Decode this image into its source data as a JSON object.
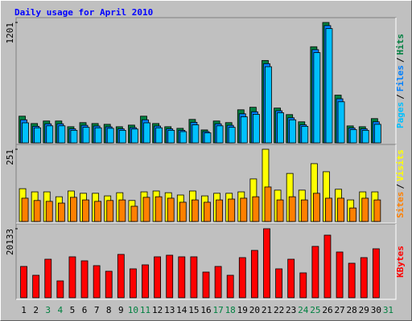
{
  "chart_data": [
    {
      "type": "bar",
      "title": "Daily usage for April 2010",
      "categories": [
        "1",
        "2",
        "3",
        "4",
        "5",
        "6",
        "7",
        "8",
        "9",
        "10",
        "11",
        "12",
        "13",
        "14",
        "15",
        "16",
        "17",
        "18",
        "19",
        "20",
        "21",
        "22",
        "23",
        "24",
        "25",
        "26",
        "27",
        "28",
        "29",
        "30",
        "31"
      ],
      "category_colors": [
        "#000000",
        "#000000",
        "#008040",
        "#008040",
        "#000000",
        "#000000",
        "#000000",
        "#000000",
        "#000000",
        "#008040",
        "#008040",
        "#000000",
        "#000000",
        "#000000",
        "#000000",
        "#000000",
        "#008040",
        "#008040",
        "#000000",
        "#000000",
        "#000000",
        "#000000",
        "#000000",
        "#008040",
        "#008040",
        "#000000",
        "#000000",
        "#000000",
        "#000000",
        "#000000",
        "#008040"
      ],
      "legend_separator": "/",
      "ylim": [
        0,
        1201
      ],
      "yticks": [
        1201
      ],
      "series": [
        {
          "name": "Hits",
          "color": "#008040",
          "values": [
            266,
            193,
            218,
            218,
            161,
            202,
            193,
            185,
            161,
            177,
            266,
            193,
            161,
            145,
            234,
            129,
            218,
            202,
            330,
            355,
            822,
            347,
            282,
            210,
            959,
            1201,
            476,
            169,
            161,
            242,
            null
          ]
        },
        {
          "name": "Files",
          "color": "#0080ff",
          "values": [
            230,
            165,
            190,
            190,
            140,
            175,
            168,
            160,
            140,
            152,
            230,
            168,
            140,
            125,
            205,
            112,
            190,
            175,
            290,
            310,
            790,
            320,
            250,
            180,
            930,
            1170,
            440,
            148,
            140,
            210,
            null
          ]
        },
        {
          "name": "Pages",
          "color": "#00c0ff",
          "values": [
            200,
            150,
            170,
            170,
            125,
            155,
            150,
            145,
            125,
            138,
            200,
            150,
            125,
            112,
            180,
            100,
            170,
            155,
            260,
            285,
            760,
            300,
            230,
            165,
            900,
            1140,
            410,
            132,
            125,
            185,
            null
          ]
        }
      ]
    },
    {
      "type": "bar",
      "ylim": [
        0,
        251
      ],
      "yticks": [
        251
      ],
      "series": [
        {
          "name": "Visits",
          "color": "#ffff00",
          "values": [
            114,
            103,
            103,
            86,
            106,
            98,
            98,
            89,
            100,
            73,
            103,
            106,
            100,
            92,
            106,
            89,
            98,
            98,
            103,
            148,
            251,
            109,
            167,
            109,
            201,
            173,
            112,
            75,
            103,
            103,
            null
          ]
        },
        {
          "name": "Sites",
          "color": "#ff8000",
          "values": [
            81,
            73,
            70,
            64,
            84,
            75,
            70,
            73,
            75,
            53,
            84,
            86,
            81,
            67,
            75,
            67,
            75,
            78,
            81,
            86,
            120,
            75,
            86,
            75,
            98,
            81,
            81,
            47,
            81,
            75,
            null
          ]
        }
      ]
    },
    {
      "type": "bar",
      "ylim": [
        0,
        20133
      ],
      "yticks": [
        20133
      ],
      "series": [
        {
          "name": "KBytes",
          "color": "#ff0000",
          "values": [
            9130,
            6555,
            11237,
            4916,
            11940,
            10769,
            9364,
            7726,
            12642,
            8428,
            9598,
            11940,
            12408,
            11940,
            11940,
            7491,
            9130,
            6555,
            11705,
            13812,
            20133,
            8428,
            11237,
            7257,
            14983,
            18260,
            13344,
            10067,
            11705,
            14280,
            null
          ]
        }
      ]
    }
  ]
}
